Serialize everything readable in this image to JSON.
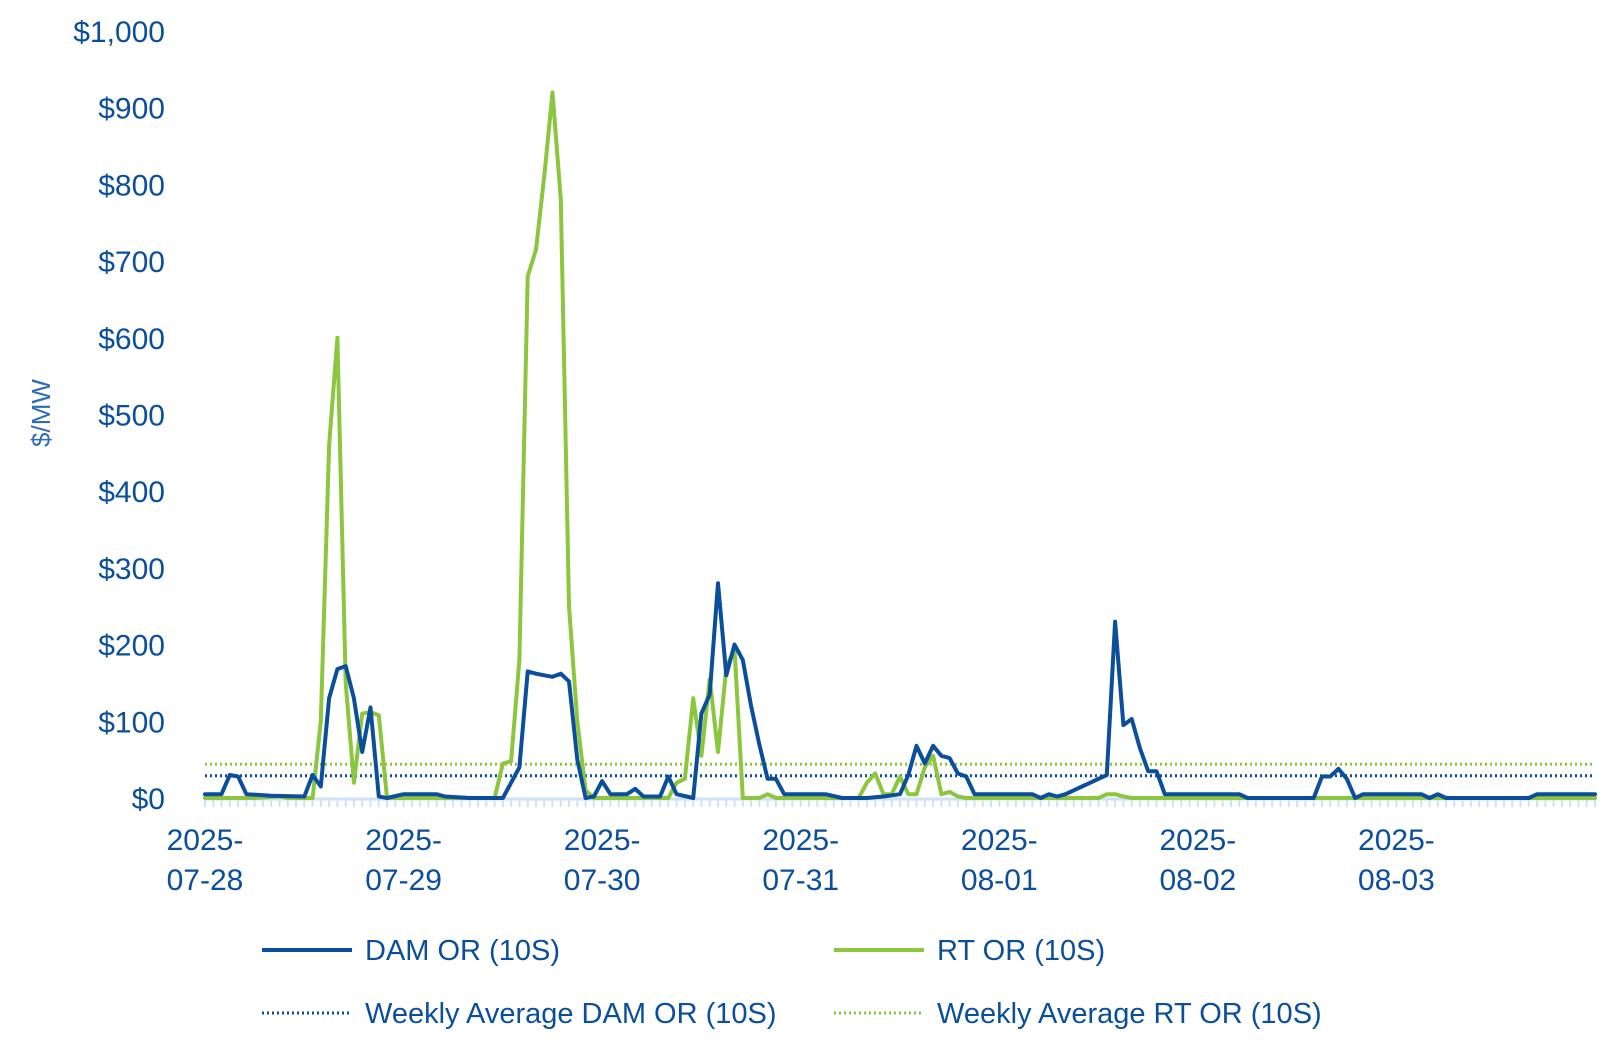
{
  "chart_data": {
    "type": "line",
    "title": "",
    "xlabel": "",
    "ylabel": "$/MW",
    "ylim": [
      0,
      1000
    ],
    "y_ticks": [
      0,
      100,
      200,
      300,
      400,
      500,
      600,
      700,
      800,
      900,
      1000
    ],
    "y_tick_labels": [
      "$0",
      "$100",
      "$200",
      "$300",
      "$400",
      "$500",
      "$600",
      "$700",
      "$800",
      "$900",
      "$1,000"
    ],
    "x_unit": "hour",
    "xlim": [
      0,
      168
    ],
    "x_ticks": [
      0,
      24,
      48,
      72,
      96,
      120,
      144
    ],
    "x_tick_labels": [
      [
        "2025-",
        "07-28"
      ],
      [
        "2025-",
        "07-29"
      ],
      [
        "2025-",
        "07-30"
      ],
      [
        "2025-",
        "07-31"
      ],
      [
        "2025-",
        "08-01"
      ],
      [
        "2025-",
        "08-02"
      ],
      [
        "2025-",
        "08-03"
      ]
    ],
    "grid": false,
    "legend_position": "bottom",
    "colors": {
      "dam": "#0b4f9c",
      "rt": "#8cc63f",
      "axis": "#cfe2f5"
    },
    "series": [
      {
        "name": "DAM OR (10S)",
        "style": "solid",
        "color": "#0b4f9c",
        "points": [
          [
            0,
            5
          ],
          [
            2,
            5
          ],
          [
            3,
            30
          ],
          [
            4,
            28
          ],
          [
            5,
            5
          ],
          [
            8,
            3
          ],
          [
            12,
            2
          ],
          [
            13,
            30
          ],
          [
            14,
            15
          ],
          [
            15,
            130
          ],
          [
            16,
            168
          ],
          [
            17,
            172
          ],
          [
            18,
            130
          ],
          [
            19,
            60
          ],
          [
            20,
            118
          ],
          [
            21,
            2
          ],
          [
            22,
            0
          ],
          [
            24,
            5
          ],
          [
            28,
            5
          ],
          [
            29,
            2
          ],
          [
            32,
            0
          ],
          [
            36,
            0
          ],
          [
            38,
            40
          ],
          [
            39,
            165
          ],
          [
            40,
            162
          ],
          [
            41,
            160
          ],
          [
            42,
            158
          ],
          [
            43,
            162
          ],
          [
            44,
            152
          ],
          [
            45,
            50
          ],
          [
            46,
            0
          ],
          [
            47,
            2
          ],
          [
            48,
            22
          ],
          [
            49,
            5
          ],
          [
            51,
            5
          ],
          [
            52,
            12
          ],
          [
            53,
            2
          ],
          [
            55,
            2
          ],
          [
            56,
            28
          ],
          [
            57,
            5
          ],
          [
            59,
            0
          ],
          [
            60,
            110
          ],
          [
            61,
            135
          ],
          [
            62,
            280
          ],
          [
            63,
            160
          ],
          [
            64,
            200
          ],
          [
            65,
            180
          ],
          [
            66,
            120
          ],
          [
            67,
            70
          ],
          [
            68,
            25
          ],
          [
            69,
            25
          ],
          [
            70,
            5
          ],
          [
            75,
            5
          ],
          [
            77,
            0
          ],
          [
            80,
            0
          ],
          [
            82,
            2
          ],
          [
            84,
            5
          ],
          [
            85,
            30
          ],
          [
            86,
            68
          ],
          [
            87,
            45
          ],
          [
            88,
            68
          ],
          [
            89,
            55
          ],
          [
            90,
            52
          ],
          [
            91,
            32
          ],
          [
            92,
            28
          ],
          [
            93,
            5
          ],
          [
            100,
            5
          ],
          [
            101,
            0
          ],
          [
            102,
            5
          ],
          [
            103,
            2
          ],
          [
            104,
            5
          ],
          [
            105,
            10
          ],
          [
            106,
            15
          ],
          [
            107,
            20
          ],
          [
            108,
            25
          ],
          [
            109,
            30
          ],
          [
            110,
            230
          ],
          [
            111,
            95
          ],
          [
            112,
            103
          ],
          [
            113,
            65
          ],
          [
            114,
            35
          ],
          [
            115,
            35
          ],
          [
            116,
            5
          ],
          [
            125,
            5
          ],
          [
            126,
            0
          ],
          [
            134,
            0
          ],
          [
            135,
            28
          ],
          [
            136,
            28
          ],
          [
            137,
            38
          ],
          [
            138,
            25
          ],
          [
            139,
            0
          ],
          [
            140,
            5
          ],
          [
            147,
            5
          ],
          [
            148,
            0
          ],
          [
            149,
            5
          ],
          [
            150,
            0
          ],
          [
            160,
            0
          ],
          [
            161,
            5
          ],
          [
            168,
            5
          ]
        ]
      },
      {
        "name": "RT OR (10S)",
        "style": "solid",
        "color": "#8cc63f",
        "points": [
          [
            0,
            0
          ],
          [
            6,
            0
          ],
          [
            9,
            2
          ],
          [
            10,
            0
          ],
          [
            13,
            0
          ],
          [
            14,
            100
          ],
          [
            15,
            460
          ],
          [
            16,
            600
          ],
          [
            17,
            150
          ],
          [
            18,
            20
          ],
          [
            19,
            110
          ],
          [
            20,
            112
          ],
          [
            21,
            108
          ],
          [
            22,
            0
          ],
          [
            35,
            0
          ],
          [
            36,
            45
          ],
          [
            37,
            48
          ],
          [
            38,
            180
          ],
          [
            39,
            680
          ],
          [
            40,
            715
          ],
          [
            41,
            810
          ],
          [
            42,
            920
          ],
          [
            43,
            780
          ],
          [
            44,
            250
          ],
          [
            45,
            100
          ],
          [
            46,
            10
          ],
          [
            47,
            0
          ],
          [
            56,
            0
          ],
          [
            57,
            20
          ],
          [
            58,
            25
          ],
          [
            59,
            130
          ],
          [
            60,
            55
          ],
          [
            61,
            155
          ],
          [
            62,
            60
          ],
          [
            63,
            170
          ],
          [
            64,
            195
          ],
          [
            65,
            0
          ],
          [
            67,
            0
          ],
          [
            68,
            5
          ],
          [
            69,
            0
          ],
          [
            79,
            0
          ],
          [
            80,
            20
          ],
          [
            81,
            32
          ],
          [
            82,
            5
          ],
          [
            83,
            5
          ],
          [
            84,
            28
          ],
          [
            85,
            5
          ],
          [
            86,
            5
          ],
          [
            87,
            40
          ],
          [
            88,
            55
          ],
          [
            89,
            5
          ],
          [
            90,
            8
          ],
          [
            91,
            2
          ],
          [
            92,
            0
          ],
          [
            108,
            0
          ],
          [
            109,
            5
          ],
          [
            110,
            5
          ],
          [
            111,
            2
          ],
          [
            112,
            0
          ],
          [
            168,
            0
          ]
        ]
      },
      {
        "name": "Weekly Average DAM OR (10S)",
        "style": "dotted",
        "color": "#0b4f9c",
        "constant": 29
      },
      {
        "name": "Weekly Average RT OR (10S)",
        "style": "dotted",
        "color": "#8cc63f",
        "constant": 44
      }
    ]
  }
}
